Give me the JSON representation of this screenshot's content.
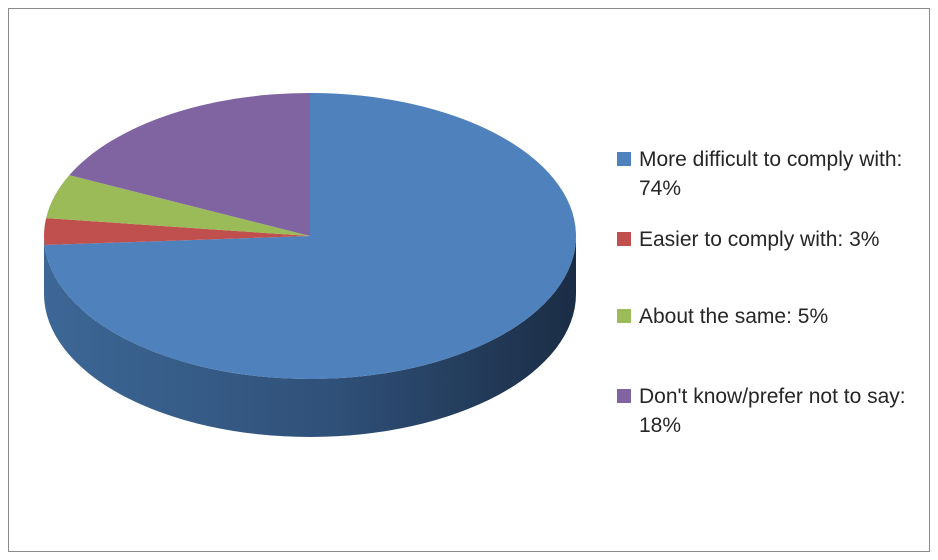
{
  "chart_data": {
    "type": "pie",
    "style": "3d",
    "title": "",
    "slices": [
      {
        "label": "More difficult to comply with: 74%",
        "value": 74,
        "color": "#4f81bd"
      },
      {
        "label": "Easier to comply with: 3%",
        "value": 3,
        "color": "#c0504d"
      },
      {
        "label": "About the same: 5%",
        "value": 5,
        "color": "#9bbb59"
      },
      {
        "label": "Don't know/prefer not to say: 18%",
        "value": 18,
        "color": "#8064a2"
      }
    ],
    "legend_position": "right"
  }
}
